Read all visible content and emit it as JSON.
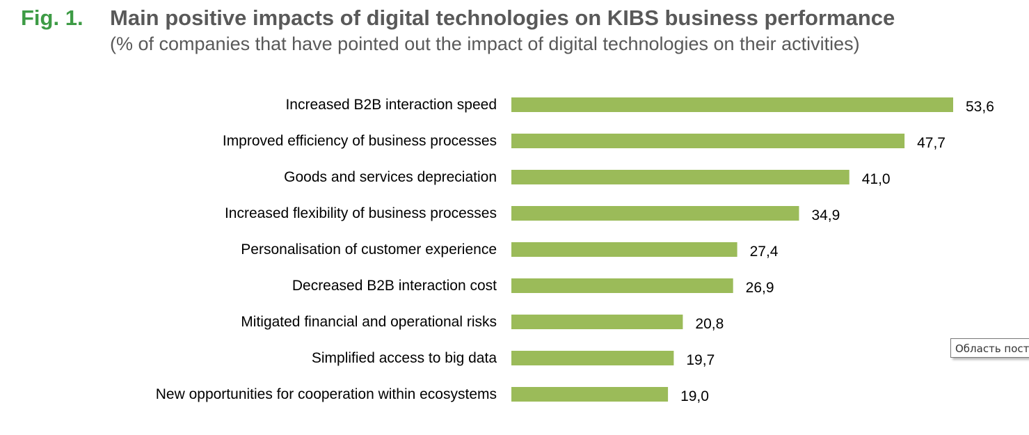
{
  "figure_label": "Fig. 1.",
  "chart_data": {
    "type": "bar",
    "orientation": "horizontal",
    "title": "Main positive impacts of digital technologies on KIBS business performance",
    "subtitle": "(% of companies that have pointed out the impact of digital technologies on their activities)",
    "categories": [
      "Increased B2B interaction speed",
      "Improved efficiency of business processes",
      "Goods and services depreciation",
      "Increased flexibility of business processes",
      "Personalisation of customer experience",
      "Decreased B2B interaction cost",
      "Mitigated financial and operational risks",
      "Simplified access to big data",
      "New opportunities for cooperation within ecosystems"
    ],
    "values": [
      53.6,
      47.7,
      41.0,
      34.9,
      27.4,
      26.9,
      20.8,
      19.7,
      19.0
    ],
    "value_labels": [
      "53,6",
      "47,7",
      "41,0",
      "34,9",
      "27,4",
      "26,9",
      "20,8",
      "19,7",
      "19,0"
    ],
    "xlim": [
      0,
      53.6
    ],
    "grid": false,
    "bar_color": "#9bbb59"
  },
  "tooltip": "Область построения"
}
